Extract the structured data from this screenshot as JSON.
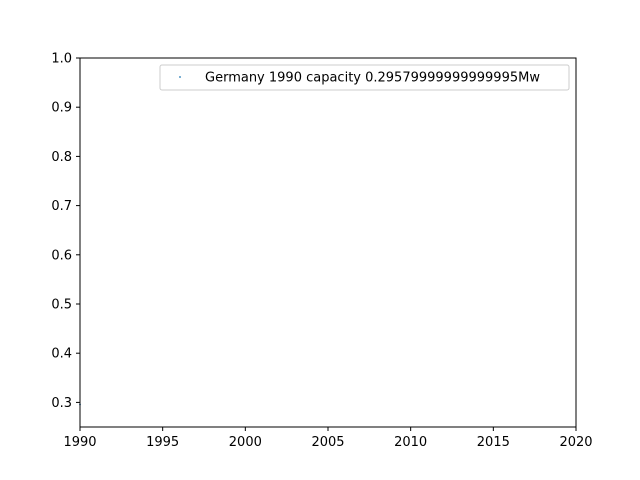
{
  "chart_data": {
    "type": "scatter",
    "title": "",
    "xlabel": "",
    "ylabel": "",
    "xlim": [
      1990,
      2020
    ],
    "ylim": [
      0.25,
      1.0
    ],
    "x_ticks": [
      {
        "value": 1990,
        "label": "1990"
      },
      {
        "value": 1995,
        "label": "1995"
      },
      {
        "value": 2000,
        "label": "2000"
      },
      {
        "value": 2005,
        "label": "2005"
      },
      {
        "value": 2010,
        "label": "2010"
      },
      {
        "value": 2015,
        "label": "2015"
      },
      {
        "value": 2020,
        "label": "2020"
      }
    ],
    "y_ticks": [
      {
        "value": 0.3,
        "label": "0.3"
      },
      {
        "value": 0.4,
        "label": "0.4"
      },
      {
        "value": 0.5,
        "label": "0.5"
      },
      {
        "value": 0.6,
        "label": "0.6"
      },
      {
        "value": 0.7,
        "label": "0.7"
      },
      {
        "value": 0.8,
        "label": "0.8"
      },
      {
        "value": 0.9,
        "label": "0.9"
      },
      {
        "value": 1.0,
        "label": "1.0"
      }
    ],
    "grid": false,
    "legend_position": "top-right",
    "series": [
      {
        "name": "Germany 1990 capacity 0.29579999999999995Mw",
        "color": "#1f77b4",
        "points": [
          {
            "x": 1990,
            "y": 0.2958
          }
        ]
      }
    ]
  }
}
